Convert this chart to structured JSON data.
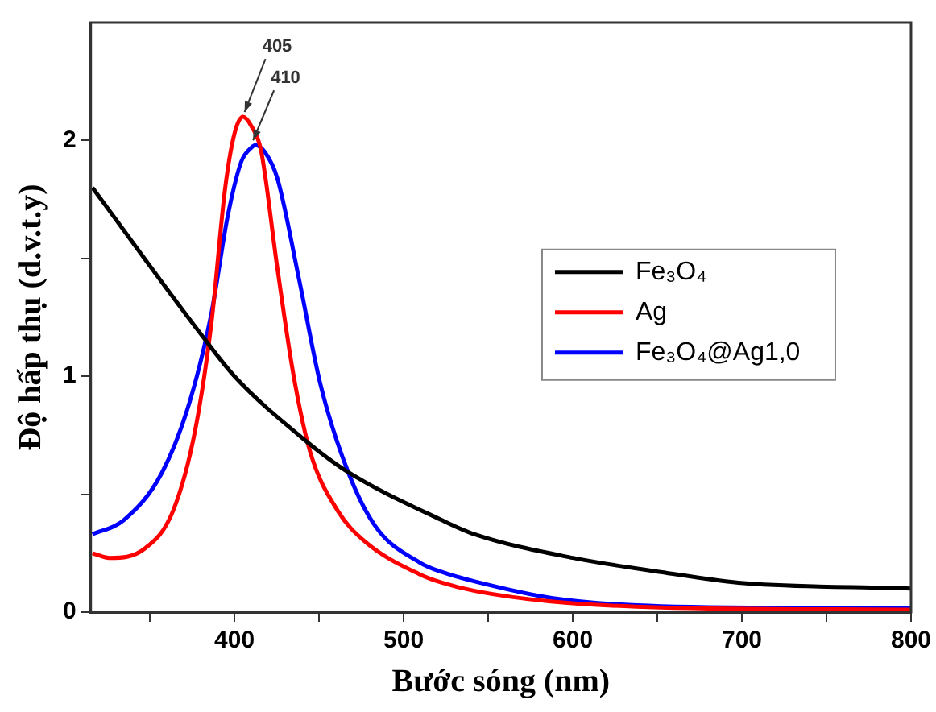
{
  "chart_data": {
    "type": "line",
    "xlabel": "Bước sóng (nm)",
    "ylabel": "Độ hấp thụ (d.v.t.y)",
    "xlim": [
      315,
      800
    ],
    "xticks": [
      {
        "value": 350,
        "label": null
      },
      400,
      {
        "value": 450,
        "label": null
      },
      500,
      {
        "value": 550,
        "label": null
      },
      600,
      {
        "value": 650,
        "label": null
      },
      700,
      {
        "value": 750,
        "label": null
      },
      800
    ],
    "ylim": [
      0,
      2.5
    ],
    "yticks": [
      0,
      {
        "value": 0.5,
        "label": null
      },
      1,
      {
        "value": 1.5,
        "label": null
      },
      2
    ],
    "grid": false,
    "legend": "right",
    "marker": "none",
    "line_style": "solid",
    "annotations": [
      {
        "text": "405",
        "x": 405,
        "y": 2.1
      },
      {
        "text": "410",
        "x": 410,
        "y": 1.98
      }
    ],
    "series": [
      {
        "name": "Fe₃O₄",
        "color": "#000000",
        "x": [
          316,
          380,
          400,
          441.5,
          465.8,
          522.6,
          542,
          600,
          652,
          698,
          800
        ],
        "values": [
          1.8,
          1.18,
          1.0,
          0.73,
          0.6,
          0.39,
          0.33,
          0.23,
          0.17,
          0.125,
          0.1
        ]
      },
      {
        "name": "Ag",
        "color": "#ff0000",
        "x": [
          316,
          326,
          347,
          363.7,
          376.7,
          386.4,
          394.5,
          400,
          405,
          410,
          415.6,
          425.3,
          435,
          444.7,
          461,
          477,
          509.6,
          522.6,
          542,
          587,
          652,
          800
        ],
        "values": [
          0.25,
          0.23,
          0.27,
          0.43,
          0.77,
          1.23,
          1.8,
          2.03,
          2.1,
          2.06,
          1.96,
          1.46,
          1.0,
          0.68,
          0.43,
          0.3,
          0.16,
          0.125,
          0.09,
          0.045,
          0.02,
          0.01
        ]
      },
      {
        "name": "Fe₃O₄@Ag1,0",
        "color": "#0000ff",
        "x": [
          316,
          334.5,
          357,
          373.4,
          386.4,
          396,
          404,
          410,
          412.4,
          418,
          425.3,
          438.2,
          451,
          467.4,
          483.7,
          509.6,
          522.6,
          542,
          587.5,
          652,
          800
        ],
        "values": [
          0.33,
          0.39,
          0.59,
          0.89,
          1.27,
          1.68,
          1.91,
          1.97,
          1.98,
          1.95,
          1.84,
          1.41,
          0.96,
          0.59,
          0.36,
          0.21,
          0.17,
          0.13,
          0.06,
          0.025,
          0.015
        ]
      }
    ]
  }
}
